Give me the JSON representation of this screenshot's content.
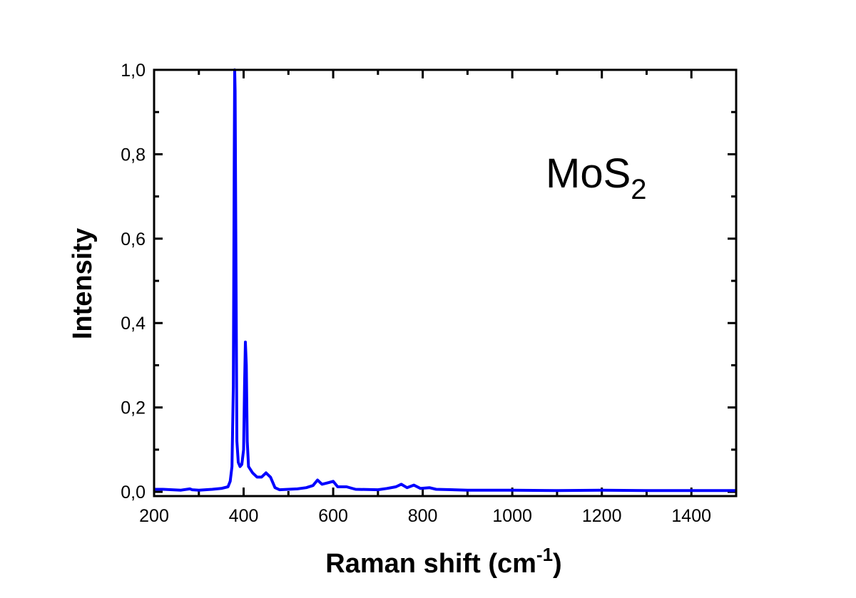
{
  "chart_data": {
    "type": "line",
    "title": "",
    "xlabel": "Raman shift (cm",
    "xlabel_sup": "-1",
    "xlabel_end": ")",
    "ylabel": "Intensity",
    "xlim": [
      200,
      1500
    ],
    "ylim": [
      -0.01,
      1.0
    ],
    "xticks": [
      200,
      400,
      600,
      800,
      1000,
      1200,
      1400
    ],
    "xtick_labels": [
      "200",
      "400",
      "600",
      "800",
      "1000",
      "1200",
      "1400"
    ],
    "yticks": [
      0.0,
      0.2,
      0.4,
      0.6,
      0.8,
      1.0
    ],
    "ytick_labels": [
      "0,0",
      "0,2",
      "0,4",
      "0,6",
      "0,8",
      "1,0"
    ],
    "grid": false,
    "annotation": {
      "text": "MoS",
      "sub": "2"
    },
    "series": [
      {
        "color": "#0000ff",
        "x": [
          200,
          220,
          260,
          280,
          285,
          300,
          330,
          350,
          365,
          370,
          374,
          377,
          379,
          380,
          381,
          383,
          385,
          388,
          392,
          396,
          400,
          402,
          404,
          406,
          408,
          411,
          420,
          430,
          440,
          450,
          460,
          470,
          480,
          500,
          520,
          540,
          555,
          565,
          575,
          590,
          600,
          610,
          630,
          650,
          700,
          720,
          740,
          752,
          765,
          780,
          795,
          815,
          830,
          900,
          1000,
          1100,
          1200,
          1300,
          1400,
          1500
        ],
        "y": [
          0.006,
          0.006,
          0.004,
          0.007,
          0.005,
          0.004,
          0.006,
          0.008,
          0.012,
          0.025,
          0.06,
          0.25,
          0.8,
          1.0,
          0.95,
          0.5,
          0.12,
          0.07,
          0.06,
          0.065,
          0.1,
          0.25,
          0.355,
          0.3,
          0.12,
          0.06,
          0.045,
          0.035,
          0.035,
          0.045,
          0.035,
          0.01,
          0.005,
          0.006,
          0.007,
          0.01,
          0.015,
          0.028,
          0.018,
          0.022,
          0.025,
          0.012,
          0.012,
          0.006,
          0.005,
          0.008,
          0.012,
          0.018,
          0.01,
          0.016,
          0.008,
          0.01,
          0.006,
          0.004,
          0.004,
          0.003,
          0.004,
          0.003,
          0.003,
          0.003
        ]
      }
    ]
  }
}
